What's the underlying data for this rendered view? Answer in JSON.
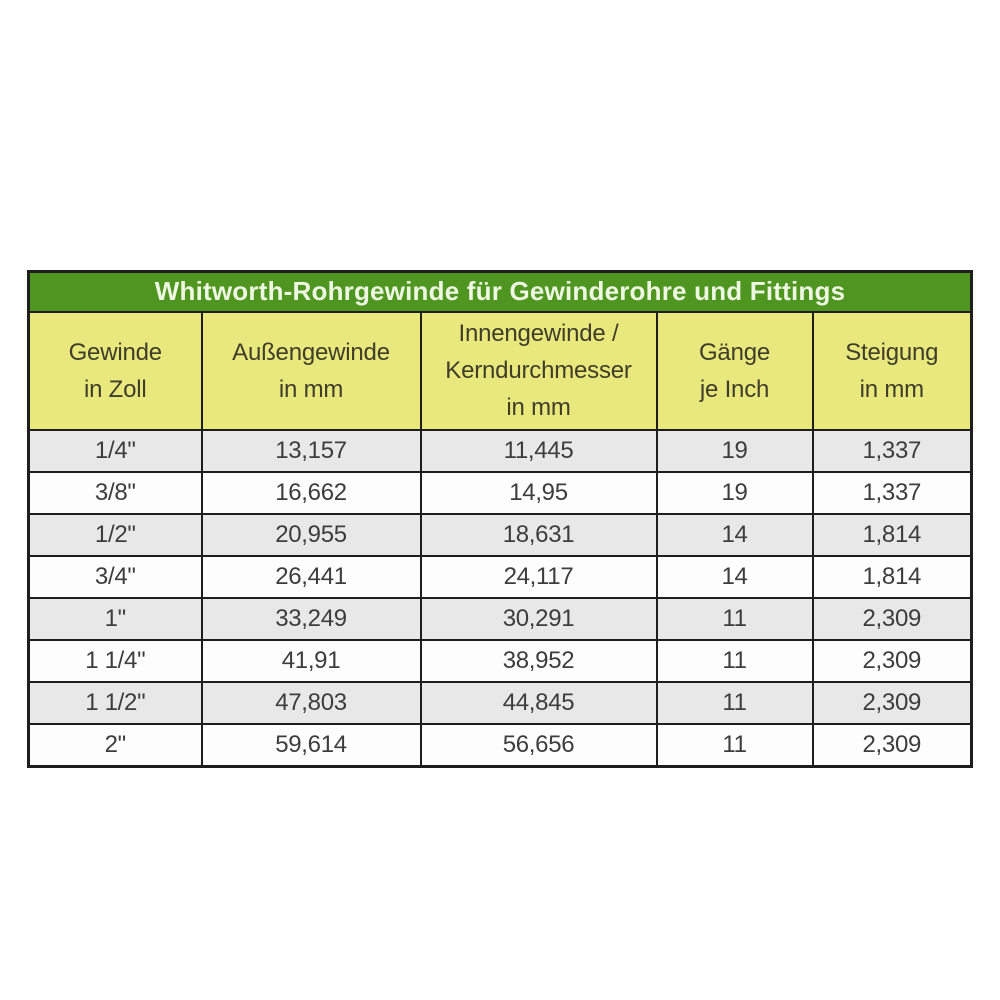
{
  "colors": {
    "page_bg": "#ffffff",
    "title_bar_bg": "#4f9620",
    "title_text": "#eef7e2",
    "header_bg": "#e9e87d",
    "header_text": "#3f3e29",
    "row_shaded": "#e8e8e8",
    "row_plain": "#fdfdfd",
    "border": "#1e1e1e",
    "data_text": "#3d3d3d"
  },
  "chart_data": {
    "type": "table",
    "title": "Whitworth-Rohrgewinde für Gewinderohre und Fittings",
    "columns": [
      {
        "key": "gewinde-in-zoll",
        "label": "Gewinde\nin Zoll"
      },
      {
        "key": "aussengewinde-in-mm",
        "label": "Außengewinde\nin mm"
      },
      {
        "key": "innengewinde-kerndurchmesser-in-mm",
        "label": "Innengewinde /\nKerndurchmesser\nin mm"
      },
      {
        "key": "gaenge-je-inch",
        "label": "Gänge\nje Inch"
      },
      {
        "key": "steigung-in-mm",
        "label": "Steigung\nin mm"
      }
    ],
    "rows": [
      [
        "1/4\"",
        "13,157",
        "11,445",
        "19",
        "1,337"
      ],
      [
        "3/8\"",
        "16,662",
        "14,95",
        "19",
        "1,337"
      ],
      [
        "1/2\"",
        "20,955",
        "18,631",
        "14",
        "1,814"
      ],
      [
        "3/4\"",
        "26,441",
        "24,117",
        "14",
        "1,814"
      ],
      [
        "1\"",
        "33,249",
        "30,291",
        "11",
        "2,309"
      ],
      [
        "1 1/4\"",
        "41,91",
        "38,952",
        "11",
        "2,309"
      ],
      [
        "1 1/2\"",
        "47,803",
        "44,845",
        "11",
        "2,309"
      ],
      [
        "2\"",
        "59,614",
        "56,656",
        "11",
        "2,309"
      ]
    ]
  }
}
